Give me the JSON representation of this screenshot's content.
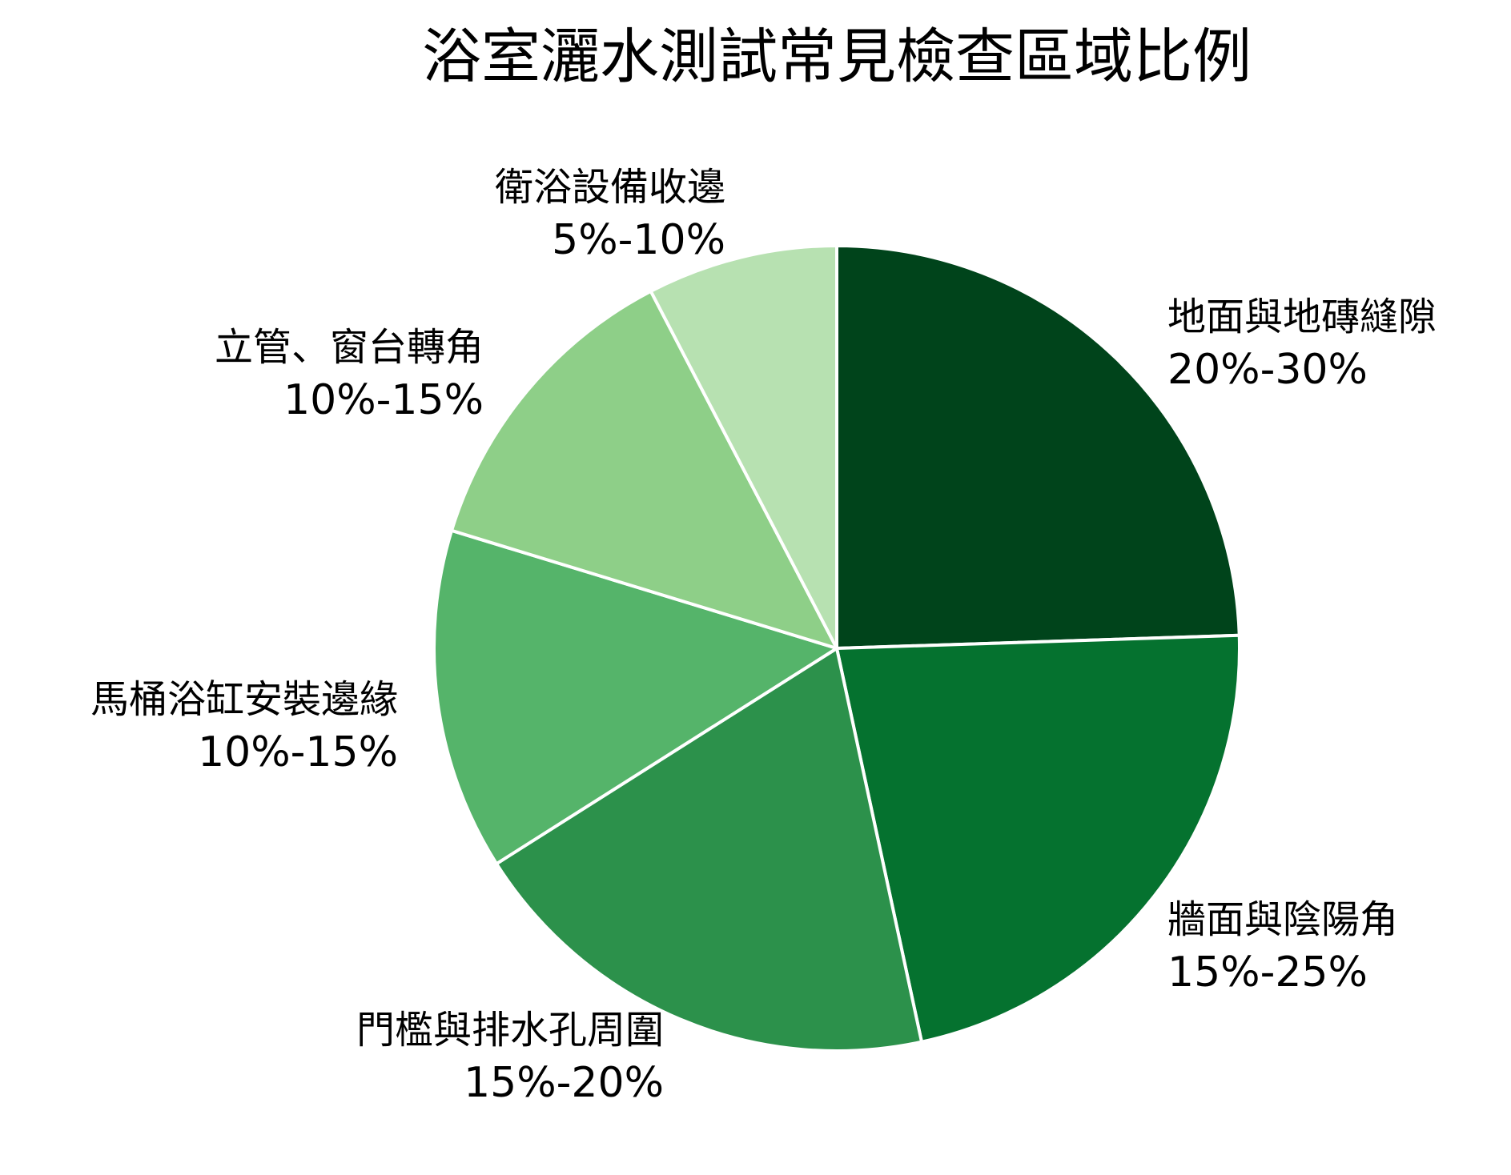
{
  "chart_data": {
    "type": "pie",
    "title": "浴室灑水測試常見檢查區域比例",
    "slices": [
      {
        "label": "地面與地磚縫隙",
        "range": "20%-30%",
        "value": 25.0,
        "color": "#00441b"
      },
      {
        "label": "牆面與陰陽角",
        "range": "15%-25%",
        "value": 22.6,
        "color": "#05722f"
      },
      {
        "label": "門檻與排水孔周圍",
        "range": "15%-20%",
        "value": 19.8,
        "color": "#2c914b"
      },
      {
        "label": "馬桶浴缸安裝邊緣",
        "range": "10%-15%",
        "value": 14.0,
        "color": "#55b46a"
      },
      {
        "label": "立管、窗台轉角",
        "range": "10%-15%",
        "value": 12.9,
        "color": "#8ecf88"
      },
      {
        "label": "衛浴設備收邊",
        "range": "5%-10%",
        "value": 7.8,
        "color": "#b7e1b1"
      }
    ],
    "start_angle": "12 o'clock",
    "direction": "clockwise"
  }
}
